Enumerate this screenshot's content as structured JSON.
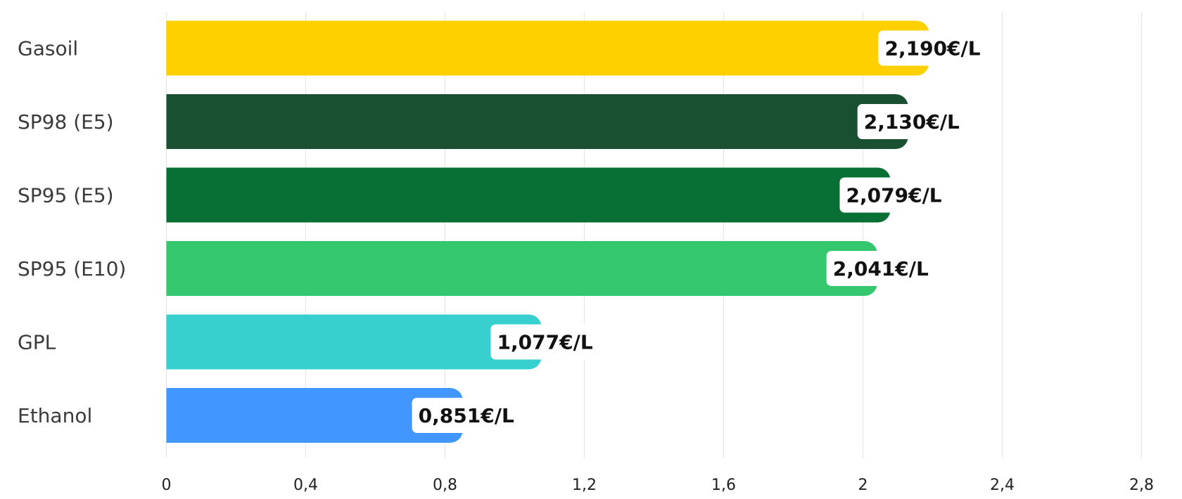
{
  "chart_data": {
    "type": "bar",
    "orientation": "horizontal",
    "categories": [
      "Gasoil",
      "SP98 (E5)",
      "SP95 (E5)",
      "SP95 (E10)",
      "GPL",
      "Ethanol"
    ],
    "values": [
      2.19,
      2.13,
      2.079,
      2.041,
      1.077,
      0.851
    ],
    "value_labels": [
      "2,190€/L",
      "2,130€/L",
      "2,079€/L",
      "2,041€/L",
      "1,077€/L",
      "0,851€/L"
    ],
    "colors": [
      "#ffd000",
      "#1a5032",
      "#087034",
      "#34c76e",
      "#38cfcf",
      "#4196ff"
    ],
    "x_ticks": [
      0,
      0.4,
      0.8,
      1.2,
      1.6,
      2,
      2.4,
      2.8
    ],
    "x_tick_labels": [
      "0",
      "0,4",
      "0,8",
      "1,2",
      "1,6",
      "2",
      "2,4",
      "2,8"
    ],
    "xlim": [
      0,
      2.8
    ],
    "grid": true,
    "legend": "none"
  }
}
